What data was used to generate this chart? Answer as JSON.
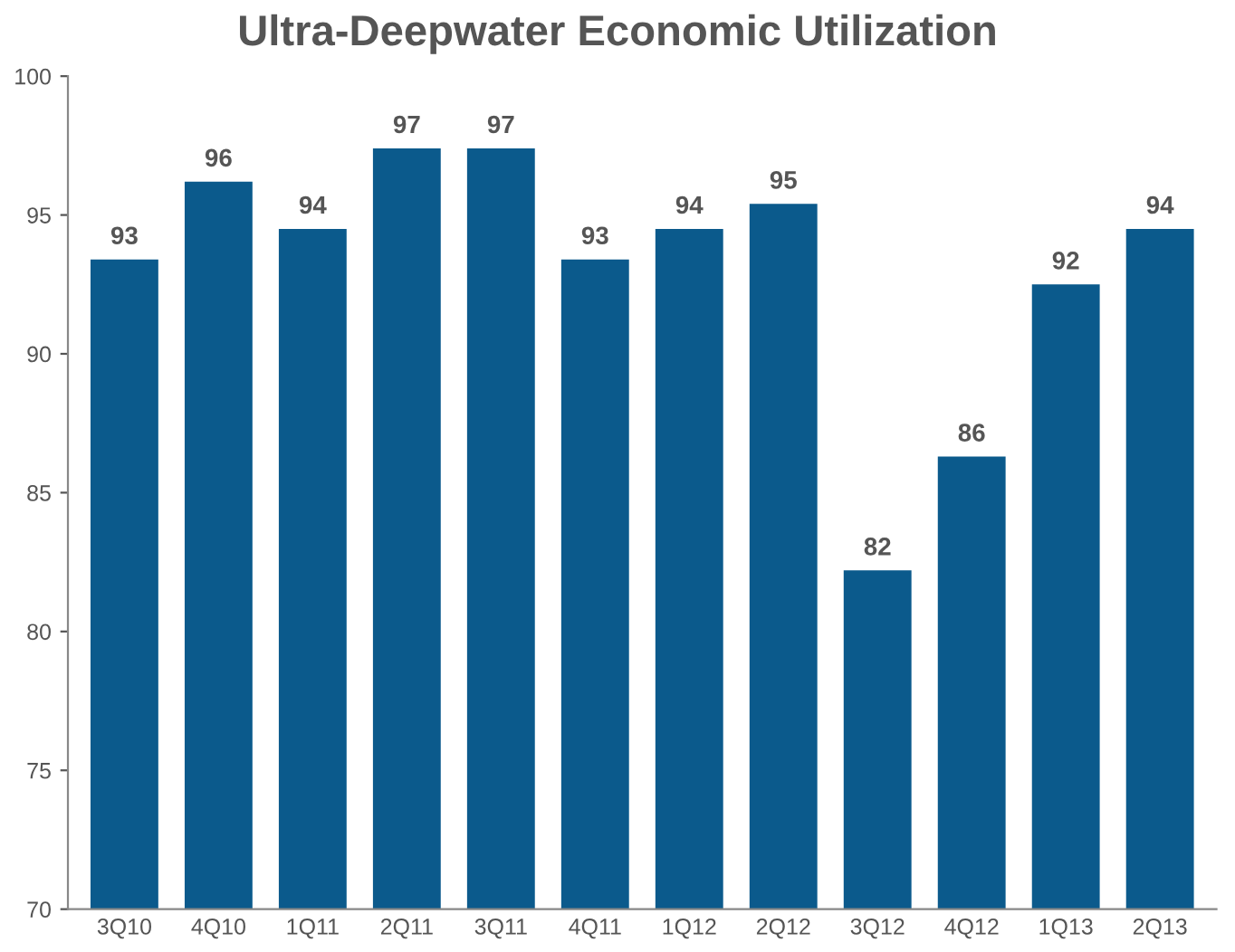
{
  "chart_data": {
    "type": "bar",
    "title": "Ultra-Deepwater Economic Utilization",
    "categories": [
      "3Q10",
      "4Q10",
      "1Q11",
      "2Q11",
      "3Q11",
      "4Q11",
      "1Q12",
      "2Q12",
      "3Q12",
      "4Q12",
      "1Q13",
      "2Q13"
    ],
    "values": [
      93.4,
      96.2,
      94.5,
      97.4,
      97.4,
      93.4,
      94.5,
      95.4,
      82.2,
      86.3,
      92.5,
      94.5
    ],
    "value_labels": [
      "93",
      "96",
      "94",
      "97",
      "97",
      "93",
      "94",
      "95",
      "82",
      "86",
      "92",
      "94"
    ],
    "color": "#0b5a8c",
    "ylim": [
      70,
      100
    ],
    "yticks": [
      70,
      75,
      80,
      85,
      90,
      95,
      100
    ],
    "grid": false
  }
}
